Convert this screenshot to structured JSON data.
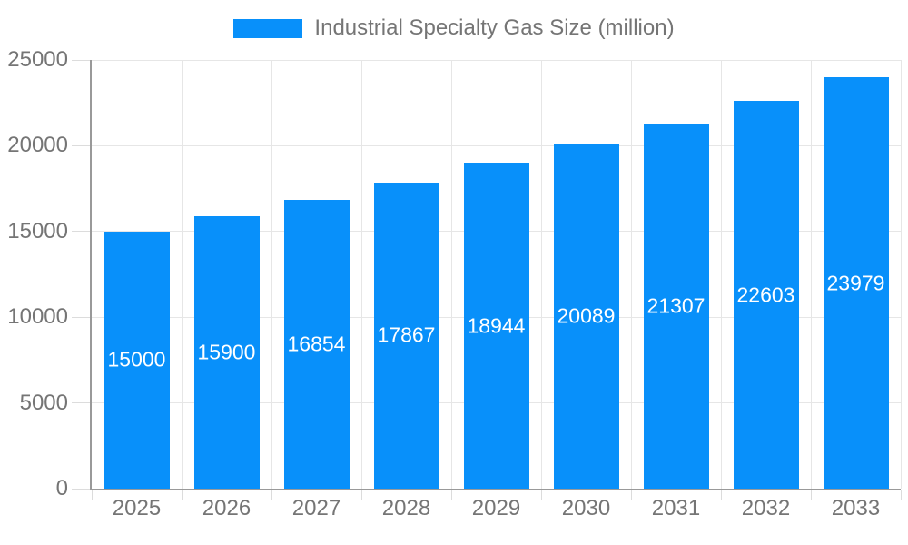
{
  "legend": {
    "label": "Industrial Specialty Gas Size (million)"
  },
  "chart_data": {
    "type": "bar",
    "title": "",
    "legend_entries": [
      "Industrial Specialty Gas Size (million)"
    ],
    "legend_position": "top",
    "categories": [
      "2025",
      "2026",
      "2027",
      "2028",
      "2029",
      "2030",
      "2031",
      "2032",
      "2033"
    ],
    "series": [
      {
        "name": "Industrial Specialty Gas Size (million)",
        "values": [
          15000,
          15900,
          16854,
          17867,
          18944,
          20089,
          21307,
          22603,
          23979
        ]
      }
    ],
    "xlabel": "",
    "ylabel": "",
    "ylim": [
      0,
      25000
    ],
    "yticks": [
      0,
      5000,
      10000,
      15000,
      20000,
      25000
    ],
    "grid": true,
    "value_labels": "inside-center",
    "colors": {
      "bar": "#0890fa",
      "bar_label": "#ffffff",
      "axis": "#999999",
      "grid": "#e6e6e6",
      "tick": "#dcdcdc",
      "text": "#757575",
      "background": "#ffffff"
    }
  }
}
